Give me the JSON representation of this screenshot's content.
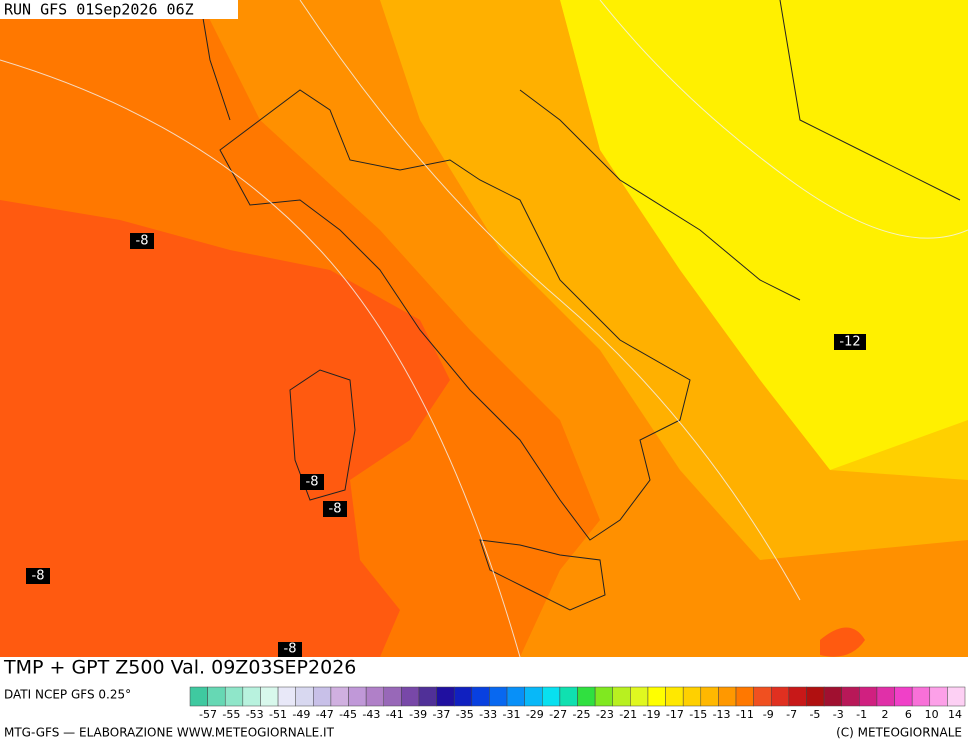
{
  "header": {
    "run": "RUN GFS 01Sep2026 06Z"
  },
  "contour_labels": [
    "-8",
    "-8",
    "-8",
    "-8",
    "-8",
    "-12"
  ],
  "caption": {
    "title": "TMP + GPT Z500 Val. 09Z03SEP2026",
    "source": "DATI NCEP GFS 0.25°"
  },
  "scale": {
    "labels": [
      -57,
      -55,
      -53,
      -51,
      -49,
      -47,
      -45,
      -43,
      -41,
      -39,
      -37,
      -35,
      -33,
      -31,
      -29,
      -27,
      -25,
      -23,
      -21,
      -19,
      -17,
      -15,
      -13,
      -11,
      -9,
      -7,
      -5,
      -3,
      -1,
      2,
      6,
      10,
      14
    ],
    "colors": [
      "#3fc9a0",
      "#66d8b4",
      "#8fe6c9",
      "#b8f2de",
      "#d8f8ec",
      "#e8e8f8",
      "#d8d8f0",
      "#c8c0e8",
      "#d0b0e0",
      "#c098d8",
      "#b080c8",
      "#9868b8",
      "#7848a8",
      "#503098",
      "#2010a0",
      "#1020c0",
      "#0840e0",
      "#0868f0",
      "#0890f8",
      "#08b8f8",
      "#08e0f0",
      "#10e0b0",
      "#30e040",
      "#80e820",
      "#b8f020",
      "#e0f820",
      "#ffff00",
      "#ffe800",
      "#ffd000",
      "#ffb800",
      "#ff9800",
      "#ff7800",
      "#f05020",
      "#e03020",
      "#c81818",
      "#b01010",
      "#a01030",
      "#b81858",
      "#d02080",
      "#e030a8",
      "#f040c8",
      "#f870d8",
      "#fca0e8",
      "#fdd0f4"
    ]
  },
  "footer": {
    "left": "MTG-GFS — ELABORAZIONE WWW.METEOGIORNALE.IT",
    "right": "(C) METEOGIORNALE"
  }
}
